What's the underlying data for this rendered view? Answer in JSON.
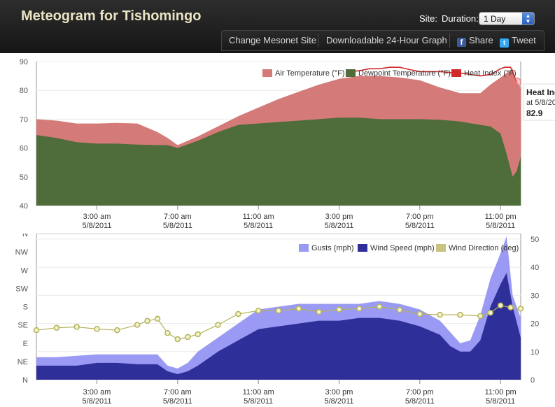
{
  "header": {
    "title": "Meteogram for Tishomingo",
    "site_label": "Site:",
    "duration_label": "Duration:",
    "duration_value": "1 Day",
    "nav": {
      "change_site": "Change Mesonet Site",
      "download": "Downloadable 24-Hour Graph",
      "share": "Share",
      "tweet": "Tweet"
    }
  },
  "colors": {
    "air": "#d47a78",
    "dew": "#4e6d3b",
    "heat": "#d22a2a",
    "gusts": "#9a9af5",
    "wind": "#2f2f9a",
    "dir_fill": "#f2f2c8",
    "dir_stroke": "#b5b25a"
  },
  "icons": {
    "facebook": "facebook-icon",
    "twitter": "twitter-icon"
  },
  "chart_data": [
    {
      "type": "area",
      "ylim": [
        40,
        90
      ],
      "yticks": [
        "90",
        "80",
        "70",
        "60",
        "50",
        "40"
      ],
      "x_hours": [
        0,
        24
      ],
      "x_tick_hours": [
        3,
        7,
        11,
        15,
        19,
        23
      ],
      "x_tick_times": [
        "3:00 am",
        "7:00 am",
        "11:00 am",
        "3:00 pm",
        "7:00 pm",
        "11:00 pm"
      ],
      "x_tick_date": "5/8/2011",
      "legend": [
        "Air Temperature (°F)",
        "Dewpoint Temperature (°F)",
        "Heat Index (°F)"
      ],
      "tooltip": {
        "title": "Heat Ind",
        "subtitle": "at 5/8/20",
        "value": "82.9"
      },
      "hours": [
        0,
        1,
        2,
        3,
        4,
        5,
        6,
        6.5,
        7,
        8,
        9,
        10,
        11,
        12,
        13,
        14,
        15,
        16,
        17,
        18,
        19,
        20,
        21,
        22,
        22.5,
        23,
        23.3,
        23.6,
        23.8,
        24
      ],
      "air": [
        70,
        69.5,
        68.5,
        68.5,
        68.7,
        68.5,
        65.5,
        63.5,
        61,
        64,
        67.5,
        71,
        74,
        77,
        79.5,
        82,
        84,
        85,
        85,
        84.5,
        83.5,
        81,
        79,
        79,
        82,
        84.5,
        86,
        87.5,
        82.9,
        81
      ],
      "dew": [
        64.5,
        63.5,
        62,
        61.5,
        61.5,
        61.2,
        61,
        61,
        60,
        62.5,
        65.5,
        68,
        68.5,
        69,
        69.5,
        70,
        70.5,
        70.5,
        70,
        70,
        70,
        69.8,
        69.2,
        68,
        67.5,
        65,
        58,
        50,
        52,
        57
      ],
      "heat_hours": [
        15.5,
        16,
        16.5,
        17,
        17.5,
        18,
        18.5,
        19,
        19.5,
        20,
        20.5,
        21,
        21.5,
        22,
        22.5,
        23,
        23.2,
        23.5,
        23.8
      ],
      "heat": [
        86.5,
        86.8,
        87.5,
        87.5,
        88,
        88,
        87.2,
        86.5,
        86.5,
        86.5,
        86.2,
        86,
        85.5,
        85,
        85.5,
        87.5,
        88,
        88,
        82.9
      ]
    },
    {
      "type": "area",
      "ylim": [
        0,
        52
      ],
      "right_yticks": [
        "50",
        "40",
        "30",
        "20",
        "10",
        "0"
      ],
      "direction_ticks": [
        "N",
        "NW",
        "W",
        "SW",
        "S",
        "SE",
        "E",
        "NE",
        "N"
      ],
      "x_hours": [
        0,
        24
      ],
      "x_tick_hours": [
        3,
        7,
        11,
        15,
        19,
        23
      ],
      "x_tick_times": [
        "3:00 am",
        "7:00 am",
        "11:00 am",
        "3:00 pm",
        "7:00 pm",
        "11:00 pm"
      ],
      "x_tick_date": "5/8/2011",
      "legend": [
        "Gusts (mph)",
        "Wind Speed (mph)",
        "Wind Direction (deg)"
      ],
      "hours": [
        0,
        1,
        2,
        3,
        4,
        5,
        6,
        6.5,
        7,
        7.5,
        8,
        9,
        10,
        11,
        12,
        13,
        14,
        15,
        16,
        17,
        18,
        19,
        20,
        20.5,
        21,
        21.5,
        22,
        22.5,
        23,
        23.3,
        23.6,
        24
      ],
      "gusts": [
        8,
        8,
        8.5,
        9,
        9,
        9,
        9,
        5,
        4,
        6,
        10,
        15,
        20,
        25,
        26,
        27,
        27,
        27,
        27,
        28,
        27,
        25,
        21,
        17,
        13,
        14,
        23,
        36,
        45,
        51,
        30,
        22
      ],
      "wind": [
        5,
        5,
        5,
        6,
        6,
        5.5,
        5.5,
        3,
        2,
        3,
        5,
        10,
        14,
        18,
        19,
        20,
        21,
        21,
        22,
        22,
        21,
        19,
        16,
        12,
        10,
        10,
        14,
        26,
        34,
        38,
        26,
        15
      ],
      "dir_hours": [
        0,
        1,
        2,
        3,
        4,
        5,
        5.5,
        6,
        6.5,
        7,
        7.5,
        8,
        9,
        10,
        11,
        12,
        13,
        14,
        15,
        16,
        17,
        18,
        19,
        20,
        21,
        22,
        22.5,
        23,
        23.5,
        24
      ],
      "direction": [
        122,
        128,
        130,
        125,
        122,
        135,
        145,
        150,
        115,
        100,
        105,
        112,
        135,
        162,
        170,
        170,
        175,
        167,
        173,
        175,
        180,
        172,
        162,
        160,
        160,
        157,
        165,
        183,
        178,
        175
      ]
    }
  ]
}
